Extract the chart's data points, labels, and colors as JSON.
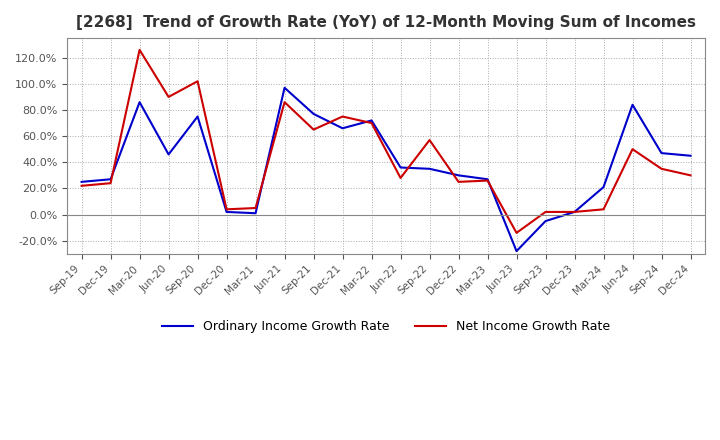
{
  "title": "[2268]  Trend of Growth Rate (YoY) of 12-Month Moving Sum of Incomes",
  "title_fontsize": 11,
  "ylim": [
    -0.3,
    1.35
  ],
  "yticks": [
    -0.2,
    0.0,
    0.2,
    0.4,
    0.6,
    0.8,
    1.0,
    1.2
  ],
  "background_color": "#ffffff",
  "grid_color": "#aaaaaa",
  "legend_labels": [
    "Ordinary Income Growth Rate",
    "Net Income Growth Rate"
  ],
  "legend_colors": [
    "#0000cc",
    "#cc0000"
  ],
  "x_labels": [
    "Sep-19",
    "Dec-19",
    "Mar-20",
    "Jun-20",
    "Sep-20",
    "Dec-20",
    "Mar-21",
    "Jun-21",
    "Sep-21",
    "Dec-21",
    "Mar-22",
    "Jun-22",
    "Sep-22",
    "Dec-22",
    "Mar-23",
    "Jun-23",
    "Sep-23",
    "Dec-23",
    "Mar-24",
    "Jun-24",
    "Sep-24",
    "Dec-24"
  ],
  "ordinary_income": [
    0.25,
    0.27,
    0.86,
    0.46,
    0.75,
    0.02,
    0.01,
    0.97,
    0.77,
    0.66,
    0.72,
    0.36,
    0.35,
    0.3,
    0.27,
    -0.28,
    -0.05,
    0.02,
    0.21,
    0.84,
    0.47,
    0.45
  ],
  "net_income": [
    0.22,
    0.24,
    1.26,
    0.9,
    1.02,
    0.04,
    0.05,
    0.86,
    0.65,
    0.75,
    0.7,
    0.28,
    0.57,
    0.25,
    0.26,
    -0.14,
    0.02,
    0.02,
    0.04,
    0.5,
    0.35,
    0.3
  ]
}
